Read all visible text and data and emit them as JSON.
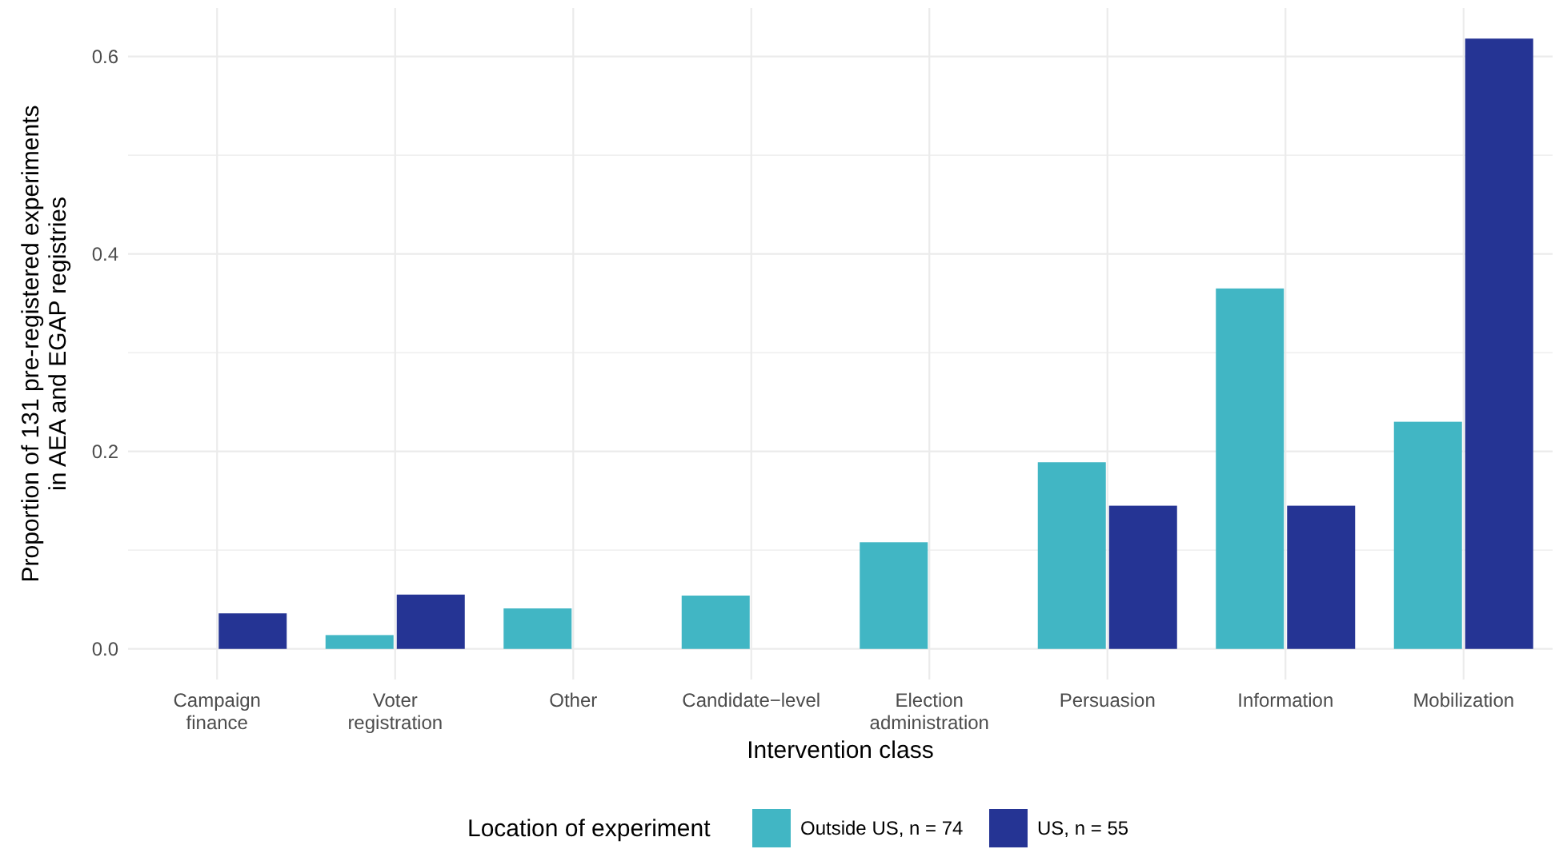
{
  "chart_data": {
    "type": "bar",
    "xlabel": "Intervention class",
    "ylabel": "Proportion of 131 pre-registered experiments\nin AEA and EGAP registries",
    "legend_title": "Location of experiment",
    "categories": [
      "Campaign\nfinance",
      "Voter\nregistration",
      "Other",
      "Candidate−level",
      "Election\nadministration",
      "Persuasion",
      "Information",
      "Mobilization"
    ],
    "series": [
      {
        "name": "Outside US, n = 74",
        "color": "#41b6c4",
        "values": [
          null,
          0.014,
          0.041,
          0.054,
          0.108,
          0.189,
          0.365,
          0.23
        ]
      },
      {
        "name": "US, n = 55",
        "color": "#253494",
        "values": [
          0.036,
          0.055,
          null,
          null,
          null,
          0.145,
          0.145,
          0.618
        ]
      }
    ],
    "ylim": [
      -0.031,
      0.649
    ],
    "yticks": [
      {
        "value": 0,
        "label": "0.0"
      },
      {
        "value": 0.1,
        "label": null
      },
      0.2,
      {
        "value": 0.3,
        "label": null
      },
      0.4,
      {
        "value": 0.5,
        "label": null
      },
      0.6
    ],
    "grid": true,
    "legend": "bottom"
  }
}
